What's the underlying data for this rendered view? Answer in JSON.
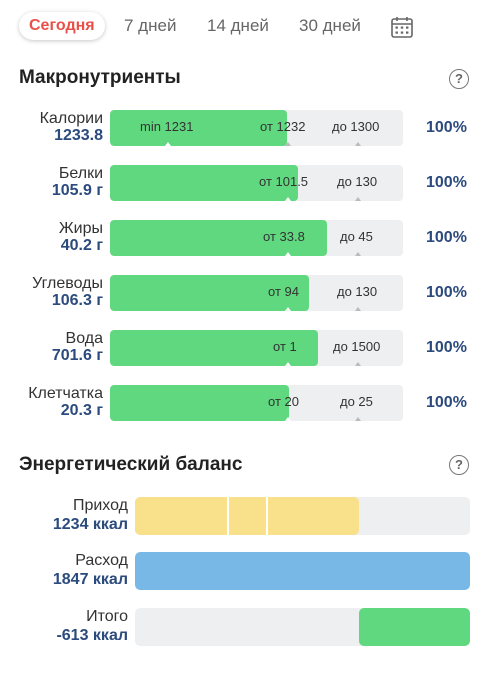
{
  "tabs": [
    {
      "label": "Сегодня",
      "active": true
    },
    {
      "label": "7 дней",
      "active": false
    },
    {
      "label": "14 дней",
      "active": false
    },
    {
      "label": "30 дней",
      "active": false
    }
  ],
  "calendar_icon": "calendar-icon",
  "macros": {
    "title": "Макронутриенты",
    "help_icon": "?",
    "rows": [
      {
        "name": "Калории",
        "value": "1233.8",
        "fill": 0.605,
        "labels": [
          "min 1231",
          "от 1232",
          "до 1300"
        ],
        "percent": "100%"
      },
      {
        "name": "Белки",
        "value": "105.9 г",
        "fill": 0.64,
        "labels": [
          "от 101.5",
          "до 130"
        ],
        "percent": "100%"
      },
      {
        "name": "Жиры",
        "value": "40.2 г",
        "fill": 0.74,
        "labels": [
          "от 33.8",
          "до 45"
        ],
        "percent": "100%"
      },
      {
        "name": "Углеводы",
        "value": "106.3 г",
        "fill": 0.68,
        "labels": [
          "от 94",
          "до 130"
        ],
        "percent": "100%"
      },
      {
        "name": "Вода",
        "value": "701.6 г",
        "fill": 0.71,
        "labels": [
          "от 1",
          "до 1500"
        ],
        "percent": "100%"
      },
      {
        "name": "Клетчатка",
        "value": "20.3 г",
        "fill": 0.61,
        "labels": [
          "от 20",
          "до 25"
        ],
        "percent": "100%"
      }
    ]
  },
  "energy": {
    "title": "Энергетический баланс",
    "help_icon": "?",
    "rows": [
      {
        "name": "Приход",
        "value": "1234 ккал",
        "start": 0,
        "fill": 0.668,
        "color": "#f9e08a"
      },
      {
        "name": "Расход",
        "value": "1847 ккал",
        "start": 0,
        "fill": 1.0,
        "color": "#78b8e6"
      },
      {
        "name": "Итого",
        "value": "-613 ккал",
        "start": 0.668,
        "fill": 0.332,
        "color": "#5fd87f"
      }
    ]
  },
  "colors": {
    "accent": "#e8514a",
    "value": "#2b4a7d",
    "green": "#5fd87f"
  }
}
